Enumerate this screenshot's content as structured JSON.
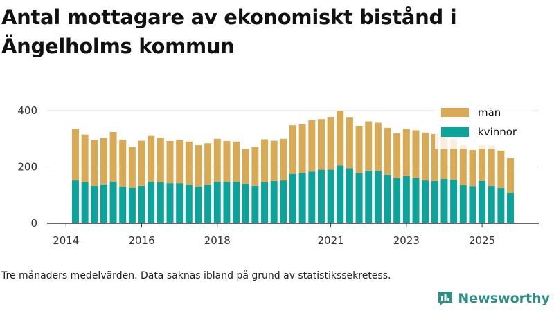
{
  "title": "Antal mottagare av ekonomiskt bistånd i Ängelholms kommun",
  "caption": "Tre månaders medelvärden. Data saknas ibland på grund av statistikssekretess.",
  "brand": {
    "name": "Newsworthy"
  },
  "colors": {
    "man": "#d9aa55",
    "kvinnor": "#0ba39a",
    "grid": "#dddddd",
    "axis": "#333333"
  },
  "chart_data": {
    "type": "bar",
    "stacked": true,
    "title": "Antal mottagare av ekonomiskt bistånd i Ängelholms kommun",
    "xlabel": "",
    "ylabel": "",
    "ylim": [
      0,
      400
    ],
    "yticks": [
      0,
      200,
      400
    ],
    "xticks": [
      "2014",
      "2016",
      "2018",
      "2021",
      "2023",
      "2025"
    ],
    "xlim": [
      2013.5,
      2026.5
    ],
    "grid": true,
    "legend_position": "top-right",
    "x": [
      2014.25,
      2014.5,
      2014.75,
      2015.0,
      2015.25,
      2015.5,
      2015.75,
      2016.0,
      2016.25,
      2016.5,
      2016.75,
      2017.0,
      2017.25,
      2017.5,
      2017.75,
      2018.0,
      2018.25,
      2018.5,
      2018.75,
      2019.0,
      2019.25,
      2019.5,
      2019.75,
      2020.0,
      2020.25,
      2020.5,
      2020.75,
      2021.0,
      2021.25,
      2021.5,
      2021.75,
      2022.0,
      2022.25,
      2022.5,
      2022.75,
      2023.0,
      2023.25,
      2023.5,
      2023.75,
      2024.0,
      2024.25,
      2024.5,
      2024.75,
      2025.0,
      2025.25,
      2025.5,
      2025.75
    ],
    "series": [
      {
        "name": "kvinnor",
        "values": [
          152,
          145,
          133,
          138,
          147,
          130,
          126,
          133,
          147,
          145,
          142,
          142,
          137,
          130,
          137,
          147,
          147,
          147,
          140,
          133,
          145,
          150,
          152,
          175,
          178,
          183,
          190,
          190,
          205,
          195,
          178,
          187,
          185,
          172,
          160,
          167,
          160,
          152,
          150,
          157,
          155,
          135,
          132,
          150,
          133,
          125,
          108
        ]
      },
      {
        "name": "män",
        "values": [
          183,
          170,
          162,
          165,
          177,
          167,
          144,
          160,
          163,
          158,
          150,
          155,
          153,
          147,
          147,
          153,
          145,
          143,
          123,
          138,
          153,
          143,
          148,
          173,
          173,
          183,
          180,
          187,
          195,
          180,
          167,
          175,
          172,
          167,
          160,
          168,
          170,
          170,
          167,
          153,
          145,
          142,
          128,
          127,
          143,
          133,
          123
        ]
      }
    ]
  }
}
